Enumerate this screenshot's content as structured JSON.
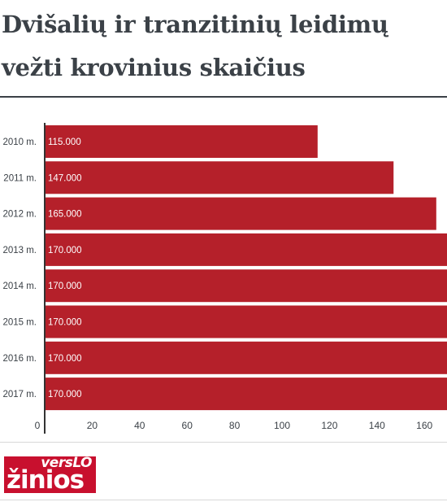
{
  "title": "Dvišalių ir tranzitinių leidimų vežti krovinius skaičius",
  "logo": {
    "top": "versLO",
    "main": "žinios"
  },
  "chart_data": {
    "type": "bar",
    "orientation": "horizontal",
    "title": "Dvišalių ir tranzitinių leidimų vežti krovinius skaičius",
    "categories": [
      "2010 m.",
      "2011 m.",
      "2012 m.",
      "2013 m.",
      "2014 m.",
      "2015 m.",
      "2016 m.",
      "2017 m."
    ],
    "values": [
      115,
      147,
      165,
      170,
      170,
      170,
      170,
      170
    ],
    "data_labels": [
      "115.000",
      "147.000",
      "165.000",
      "170.000",
      "170.000",
      "170.000",
      "170.000",
      "170.000"
    ],
    "x_ticks": [
      0,
      20,
      40,
      60,
      80,
      100,
      120,
      140,
      160
    ],
    "xlim": [
      0,
      170
    ],
    "xlabel": "",
    "ylabel": "",
    "bar_color": "#b5202a",
    "grid": false,
    "legend": "none"
  }
}
